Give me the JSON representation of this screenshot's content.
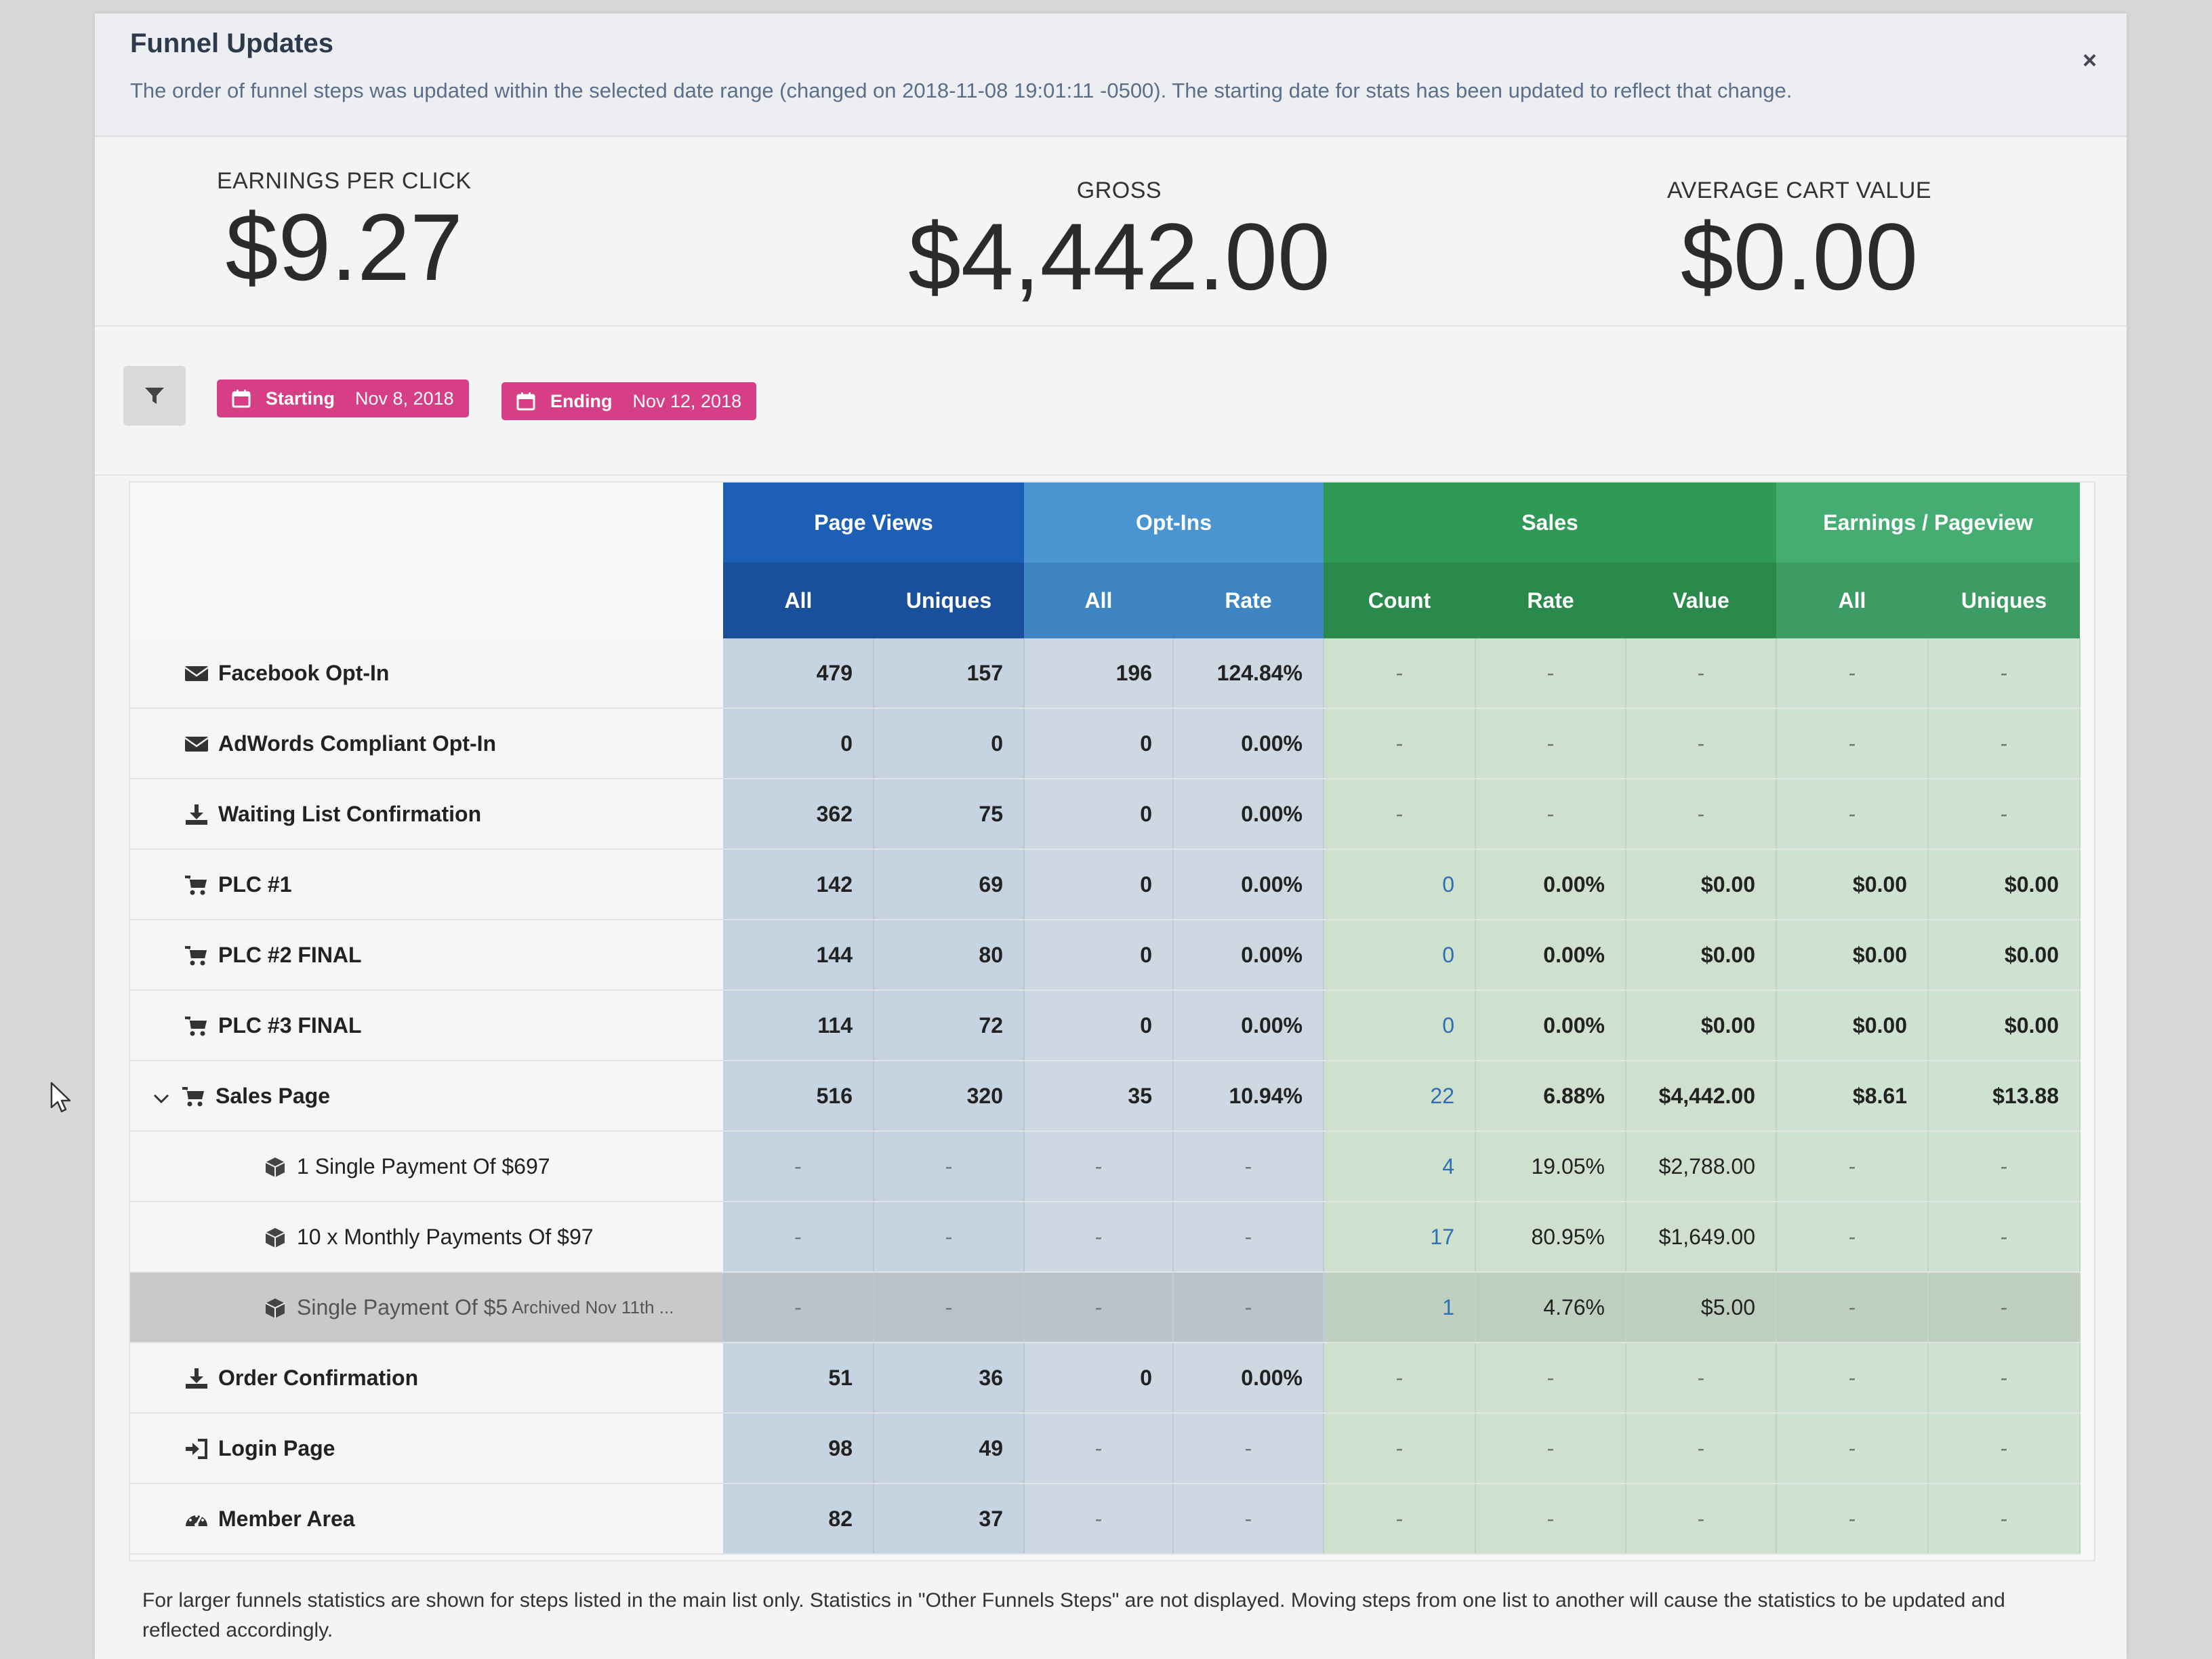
{
  "alert": {
    "title": "Funnel Updates",
    "text": "The order of funnel steps was updated within the selected date range (changed on 2018-11-08 19:01:11 -0500). The starting date for stats has been updated to reflect that change.",
    "close": "×"
  },
  "stats": {
    "epc_label": "EARNINGS PER CLICK",
    "epc_value": "$9.27",
    "gross_label": "GROSS",
    "gross_value": "$4,442.00",
    "acv_label": "AVERAGE CART VALUE",
    "acv_value": "$0.00"
  },
  "filters": {
    "starting_label": "Starting",
    "starting_date": "Nov 8, 2018",
    "ending_label": "Ending",
    "ending_date": "Nov 12, 2018"
  },
  "table": {
    "groups": [
      "Page Views",
      "Opt-Ins",
      "Sales",
      "Earnings / Pageview"
    ],
    "subheaders": [
      "All",
      "Uniques",
      "All",
      "Rate",
      "Count",
      "Rate",
      "Value",
      "All",
      "Uniques"
    ],
    "rows": [
      {
        "icon": "envelope-icon",
        "name": "Facebook Opt-In",
        "cells": [
          "479",
          "157",
          "196",
          "124.84%",
          "-",
          "-",
          "-",
          "-",
          "-"
        ]
      },
      {
        "icon": "envelope-icon",
        "name": "AdWords Compliant Opt-In",
        "cells": [
          "0",
          "0",
          "0",
          "0.00%",
          "-",
          "-",
          "-",
          "-",
          "-"
        ]
      },
      {
        "icon": "download-icon",
        "name": "Waiting List Confirmation",
        "cells": [
          "362",
          "75",
          "0",
          "0.00%",
          "-",
          "-",
          "-",
          "-",
          "-"
        ]
      },
      {
        "icon": "cart-icon",
        "name": "PLC #1",
        "cells": [
          "142",
          "69",
          "0",
          "0.00%",
          "0",
          "0.00%",
          "$0.00",
          "$0.00",
          "$0.00"
        ]
      },
      {
        "icon": "cart-icon",
        "name": "PLC #2 FINAL",
        "cells": [
          "144",
          "80",
          "0",
          "0.00%",
          "0",
          "0.00%",
          "$0.00",
          "$0.00",
          "$0.00"
        ]
      },
      {
        "icon": "cart-icon",
        "name": "PLC #3 FINAL",
        "cells": [
          "114",
          "72",
          "0",
          "0.00%",
          "0",
          "0.00%",
          "$0.00",
          "$0.00",
          "$0.00"
        ]
      },
      {
        "icon": "cart-icon",
        "name": "Sales Page",
        "cells": [
          "516",
          "320",
          "35",
          "10.94%",
          "22",
          "6.88%",
          "$4,442.00",
          "$8.61",
          "$13.88"
        ]
      },
      {
        "icon": "cube-icon",
        "name": "1 Single Payment Of $697",
        "cells": [
          "-",
          "-",
          "-",
          "-",
          "4",
          "19.05%",
          "$2,788.00",
          "-",
          "-"
        ]
      },
      {
        "icon": "cube-icon",
        "name": "10 x Monthly Payments Of $97",
        "cells": [
          "-",
          "-",
          "-",
          "-",
          "17",
          "80.95%",
          "$1,649.00",
          "-",
          "-"
        ]
      },
      {
        "icon": "cube-icon",
        "name": "Single Payment Of $5",
        "archived": "Archived Nov 11th ...",
        "cells": [
          "-",
          "-",
          "-",
          "-",
          "1",
          "4.76%",
          "$5.00",
          "-",
          "-"
        ]
      },
      {
        "icon": "download-icon",
        "name": "Order Confirmation",
        "cells": [
          "51",
          "36",
          "0",
          "0.00%",
          "-",
          "-",
          "-",
          "-",
          "-"
        ]
      },
      {
        "icon": "signin-icon",
        "name": "Login Page",
        "cells": [
          "98",
          "49",
          "-",
          "-",
          "-",
          "-",
          "-",
          "-",
          "-"
        ]
      },
      {
        "icon": "dashboard-icon",
        "name": "Member Area",
        "cells": [
          "82",
          "37",
          "-",
          "-",
          "-",
          "-",
          "-",
          "-",
          "-"
        ]
      }
    ]
  },
  "footer": "For larger funnels statistics are shown for steps listed in the main list only. Statistics in \"Other Funnels Steps\" are not displayed. Moving steps from one list to another will cause the statistics to be updated and reflected accordingly."
}
